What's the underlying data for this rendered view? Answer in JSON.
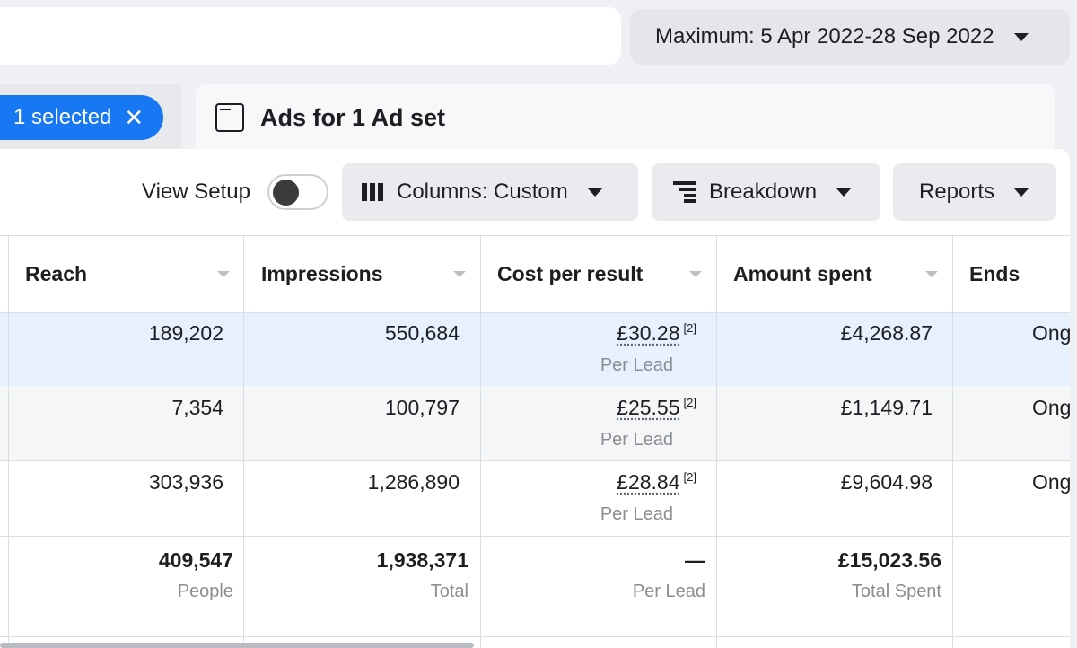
{
  "date_range": {
    "label": "Maximum: 5 Apr 2022-28 Sep 2022"
  },
  "selection": {
    "label": "1 selected",
    "clear": "✕"
  },
  "tab": {
    "title": "Ads for 1 Ad set"
  },
  "toolbar": {
    "view_setup": "View Setup",
    "columns": "Columns: Custom",
    "breakdown": "Breakdown",
    "reports": "Reports"
  },
  "table": {
    "headers": [
      "Reach",
      "Impressions",
      "Cost per result",
      "Amount spent",
      "Ends"
    ],
    "rows": [
      {
        "reach": "189,202",
        "impressions": "550,684",
        "cpr": "£30.28",
        "cpr_note": "[2]",
        "cpr_unit": "Per Lead",
        "spent": "£4,268.87",
        "ends": "Ongoing"
      },
      {
        "reach": "7,354",
        "impressions": "100,797",
        "cpr": "£25.55",
        "cpr_note": "[2]",
        "cpr_unit": "Per Lead",
        "spent": "£1,149.71",
        "ends": "Ongoing"
      },
      {
        "reach": "303,936",
        "impressions": "1,286,890",
        "cpr": "£28.84",
        "cpr_note": "[2]",
        "cpr_unit": "Per Lead",
        "spent": "£9,604.98",
        "ends": "Ongoing"
      }
    ],
    "totals": {
      "reach": "409,547",
      "reach_label": "People",
      "impressions": "1,938,371",
      "impressions_label": "Total",
      "cpr": "—",
      "cpr_label": "Per Lead",
      "spent": "£15,023.56",
      "spent_label": "Total Spent"
    }
  },
  "colors": {
    "accent": "#1877f2",
    "selected_row": "#e7f0fd",
    "alt_row": "#f5f6f7"
  }
}
